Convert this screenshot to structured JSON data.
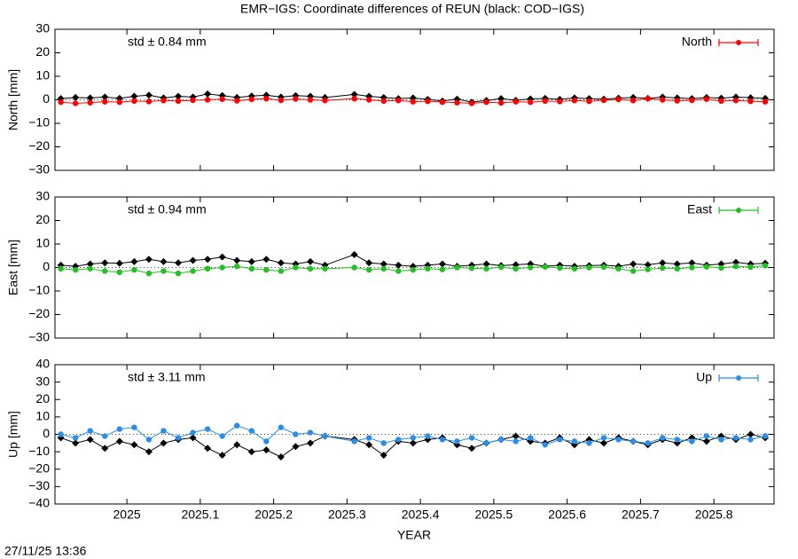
{
  "chart_data": [
    {
      "type": "line",
      "title": "EMR−IGS: Coordinate differences of REUN (black: COD−IGS)",
      "ylabel": "North [mm]",
      "annotation": "std ± 0.84 mm",
      "legend": "upper right",
      "xlim": [
        2024.902,
        2025.882
      ],
      "xticks": [
        2025,
        2025.1,
        2025.2,
        2025.3,
        2025.4,
        2025.5,
        2025.6,
        2025.7,
        2025.8
      ],
      "ylim": [
        -30,
        30
      ],
      "yticks": [
        {
          "value": -30,
          "label": "−30"
        },
        {
          "value": -20,
          "label": "−20"
        },
        {
          "value": -10,
          "label": "−10"
        },
        0,
        10,
        20,
        30
      ],
      "x": [
        2024.91,
        2024.93,
        2024.95,
        2024.97,
        2024.99,
        2025.01,
        2025.03,
        2025.05,
        2025.07,
        2025.09,
        2025.11,
        2025.13,
        2025.15,
        2025.17,
        2025.19,
        2025.21,
        2025.23,
        2025.25,
        2025.27,
        2025.31,
        2025.33,
        2025.35,
        2025.37,
        2025.39,
        2025.41,
        2025.43,
        2025.45,
        2025.47,
        2025.49,
        2025.51,
        2025.53,
        2025.55,
        2025.57,
        2025.59,
        2025.61,
        2025.63,
        2025.65,
        2025.67,
        2025.69,
        2025.71,
        2025.73,
        2025.75,
        2025.77,
        2025.79,
        2025.81,
        2025.83,
        2025.85,
        2025.87
      ],
      "series": [
        {
          "color": "#000000",
          "values": [
            0.5,
            1,
            0.8,
            1.2,
            0.6,
            1.5,
            2,
            0.8,
            1.5,
            1.2,
            2.5,
            1.8,
            1,
            1.6,
            2,
            1.2,
            1.8,
            1.5,
            1,
            2.3,
            1.5,
            1,
            0.5,
            0.8,
            0.2,
            -0.5,
            0.3,
            -1,
            -0.3,
            0.5,
            -0.2,
            0.4,
            0.6,
            0.2,
            0.8,
            0.5,
            0.3,
            0.7,
            1,
            0.6,
            1.2,
            0.8,
            0.5,
            1,
            0.7,
            1.2,
            0.9,
            0.6
          ]
        },
        {
          "name": "North",
          "color": "#ff0000",
          "values": [
            -1,
            -1.5,
            -1.2,
            -0.8,
            -1,
            -0.5,
            -0.7,
            -0.3,
            -0.5,
            -0.2,
            0,
            0.3,
            -0.4,
            0.2,
            0.5,
            -0.2,
            0.4,
            0,
            -0.3,
            0.5,
            0,
            -0.5,
            -0.3,
            -0.8,
            -0.6,
            -1,
            -1.2,
            -1.5,
            -1,
            -1.3,
            -0.8,
            -1,
            -0.5,
            -0.7,
            -0.3,
            -0.6,
            -0.2,
            0.2,
            -0.3,
            0.5,
            0,
            -0.4,
            -0.2,
            0.3,
            -0.5,
            -0.3,
            -0.6,
            -0.8
          ]
        }
      ]
    },
    {
      "type": "line",
      "ylabel": "East [mm]",
      "annotation": "std ± 0.94 mm",
      "legend": "upper right",
      "xlim": [
        2024.902,
        2025.882
      ],
      "xticks": [
        2025,
        2025.1,
        2025.2,
        2025.3,
        2025.4,
        2025.5,
        2025.6,
        2025.7,
        2025.8
      ],
      "ylim": [
        -30,
        30
      ],
      "yticks": [
        {
          "value": -30,
          "label": "−30"
        },
        {
          "value": -20,
          "label": "−20"
        },
        {
          "value": -10,
          "label": "−10"
        },
        0,
        10,
        20,
        30
      ],
      "x": [
        2024.91,
        2024.93,
        2024.95,
        2024.97,
        2024.99,
        2025.01,
        2025.03,
        2025.05,
        2025.07,
        2025.09,
        2025.11,
        2025.13,
        2025.15,
        2025.17,
        2025.19,
        2025.21,
        2025.23,
        2025.25,
        2025.27,
        2025.31,
        2025.33,
        2025.35,
        2025.37,
        2025.39,
        2025.41,
        2025.43,
        2025.45,
        2025.47,
        2025.49,
        2025.51,
        2025.53,
        2025.55,
        2025.57,
        2025.59,
        2025.61,
        2025.63,
        2025.65,
        2025.67,
        2025.69,
        2025.71,
        2025.73,
        2025.75,
        2025.77,
        2025.79,
        2025.81,
        2025.83,
        2025.85,
        2025.87
      ],
      "series": [
        {
          "color": "#000000",
          "values": [
            1,
            0.5,
            1.5,
            2,
            1.8,
            2.5,
            3.5,
            2.5,
            2,
            3,
            3.5,
            4.5,
            3,
            2.5,
            3.5,
            2,
            1.5,
            2.5,
            1,
            5.5,
            2,
            1.5,
            1,
            0.5,
            1,
            1.5,
            0.5,
            1,
            1.5,
            0.8,
            1.2,
            1.5,
            0.5,
            1,
            0.5,
            0.8,
            1,
            0.5,
            1.5,
            1.2,
            2,
            1.5,
            2,
            1,
            1.5,
            2.2,
            1.5,
            1.8
          ]
        },
        {
          "name": "East",
          "color": "#22c022",
          "values": [
            -0.5,
            -1,
            -0.5,
            -1.5,
            -2,
            -1,
            -2.5,
            -1.5,
            -2.5,
            -1.5,
            -0.5,
            0,
            0.5,
            -0.5,
            -1,
            -1.5,
            0,
            -0.5,
            -0.5,
            0,
            -1,
            -0.5,
            -1.5,
            -1,
            -0.5,
            -0.8,
            0,
            -0.3,
            -0.5,
            0.2,
            -0.5,
            0,
            0.3,
            -0.2,
            -0.5,
            0,
            0.2,
            -0.5,
            -1.5,
            -0.8,
            -0.2,
            -0.5,
            0,
            0.3,
            -0.2,
            0.5,
            0.2,
            0.8
          ]
        }
      ]
    },
    {
      "type": "line",
      "ylabel": "Up [mm]",
      "annotation": "std ± 3.11 mm",
      "legend": "upper right",
      "xlabel": "YEAR",
      "xlim": [
        2024.902,
        2025.882
      ],
      "xticks": [
        2025,
        2025.1,
        2025.2,
        2025.3,
        2025.4,
        2025.5,
        2025.6,
        2025.7,
        2025.8
      ],
      "ylim": [
        -40,
        40
      ],
      "yticks": [
        {
          "value": -40,
          "label": "−40"
        },
        {
          "value": -30,
          "label": "−30"
        },
        {
          "value": -20,
          "label": "−20"
        },
        {
          "value": -10,
          "label": "−10"
        },
        0,
        10,
        20,
        30,
        40
      ],
      "x": [
        2024.91,
        2024.93,
        2024.95,
        2024.97,
        2024.99,
        2025.01,
        2025.03,
        2025.05,
        2025.07,
        2025.09,
        2025.11,
        2025.13,
        2025.15,
        2025.17,
        2025.19,
        2025.21,
        2025.23,
        2025.25,
        2025.27,
        2025.31,
        2025.33,
        2025.35,
        2025.37,
        2025.39,
        2025.41,
        2025.43,
        2025.45,
        2025.47,
        2025.49,
        2025.51,
        2025.53,
        2025.55,
        2025.57,
        2025.59,
        2025.61,
        2025.63,
        2025.65,
        2025.67,
        2025.69,
        2025.71,
        2025.73,
        2025.75,
        2025.77,
        2025.79,
        2025.81,
        2025.83,
        2025.85,
        2025.87
      ],
      "series": [
        {
          "color": "#000000",
          "values": [
            -2,
            -5,
            -3,
            -8,
            -4,
            -6,
            -10,
            -5,
            -3,
            -2,
            -8,
            -12,
            -6,
            -10,
            -9,
            -13,
            -7,
            -5,
            -1,
            -3,
            -6,
            -12,
            -4,
            -5,
            -3,
            -2,
            -6,
            -8,
            -5,
            -3,
            -1,
            -4,
            -5,
            -2,
            -6,
            -3,
            -5,
            -2,
            -4,
            -6,
            -3,
            -5,
            -2,
            -4,
            -1,
            -3,
            0,
            -2
          ]
        },
        {
          "name": "Up",
          "color": "#2a8ee8",
          "values": [
            0,
            -2,
            2,
            -1,
            3,
            4,
            -3,
            2,
            -2,
            1,
            3,
            -1,
            5,
            2,
            -4,
            4,
            0,
            1,
            -1,
            -4,
            -2,
            -5,
            -3,
            -2,
            -1,
            -3,
            -4,
            -2,
            -5,
            -3,
            -4,
            -2,
            -6,
            -3,
            -4,
            -5,
            -2,
            -3,
            -4,
            -5,
            -2,
            -3,
            -4,
            -1,
            -3,
            -2,
            -3,
            -1
          ]
        }
      ]
    }
  ],
  "footer": "27/11/25 13:36"
}
